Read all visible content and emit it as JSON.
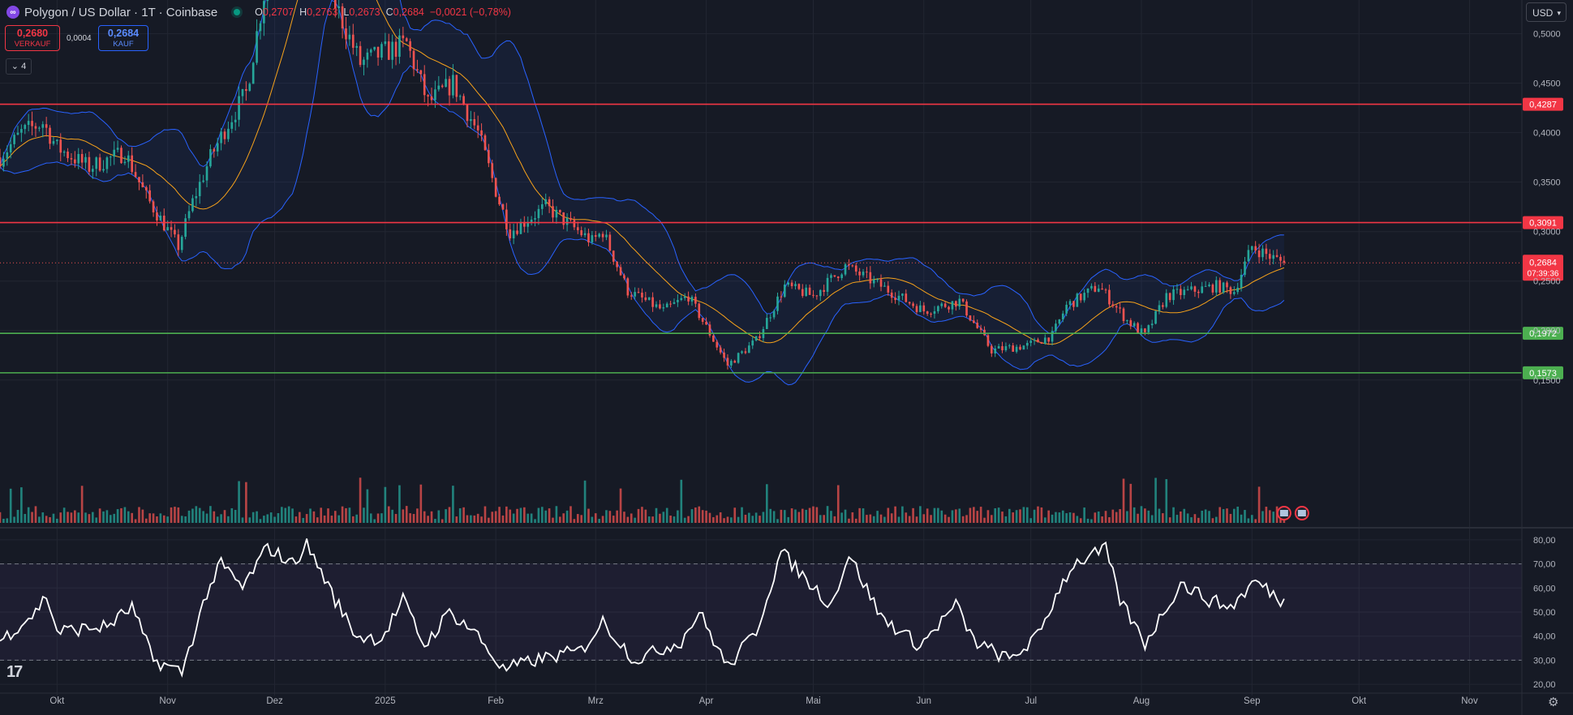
{
  "header": {
    "symbol_icon": "polygon-logo-icon",
    "title": "Polygon / US Dollar · 1T · Coinbase",
    "ohlc": {
      "o_label": "O",
      "o": "0,2707",
      "h_label": "H",
      "h": "0,2763",
      "l_label": "L",
      "l": "0,2673",
      "c_label": "C",
      "c": "0,2684",
      "change": "−0,0021 (−0,78%)"
    }
  },
  "order": {
    "sell_price": "0,2680",
    "sell_label": "VERKAUF",
    "spread": "0,0004",
    "buy_price": "0,2684",
    "buy_label": "KAUF"
  },
  "indicators_toggle": "4",
  "currency": "USD",
  "colors": {
    "background": "#161a25",
    "grid": "#222632",
    "up": "#26a69a",
    "down": "#ef5350",
    "resistance": "#f23645",
    "support": "#4caf50",
    "bollinger": "#2962ff",
    "bollinger_fill": "rgba(41,98,255,0.07)",
    "ma": "#f7a21b",
    "rsi_line": "#ffffff",
    "rsi_band": "rgba(126,87,194,0.08)",
    "axis_text": "#b2b5be"
  },
  "chart_data": [
    {
      "type": "candlestick",
      "title": "Polygon / US Dollar · 1T · Coinbase",
      "ylim": [
        0.149,
        0.5275
      ],
      "y_ticks": [
        0.15,
        0.2,
        0.25,
        0.3,
        0.35,
        0.4,
        0.45,
        0.5
      ],
      "y_tick_labels": [
        "0,1500",
        "0,2000",
        "0,2500",
        "0,3000",
        "0,3500",
        "0,4000",
        "0,4500",
        "0,5000"
      ],
      "x_ticks": [
        "Okt",
        "Nov",
        "Dez",
        "2025",
        "Feb",
        "Mrz",
        "Apr",
        "Mai",
        "Jun",
        "Jul",
        "Aug",
        "Sep",
        "Okt",
        "Nov"
      ],
      "x_range": [
        "2024-09-15",
        "2025-11-30"
      ],
      "price_anchors": [
        {
          "date": "2024-09-15",
          "close": 0.375
        },
        {
          "date": "2024-09-21",
          "close": 0.4
        },
        {
          "date": "2024-09-27",
          "close": 0.41
        },
        {
          "date": "2024-10-01",
          "close": 0.385
        },
        {
          "date": "2024-10-10",
          "close": 0.365
        },
        {
          "date": "2024-10-20",
          "close": 0.38
        },
        {
          "date": "2024-10-26",
          "close": 0.335
        },
        {
          "date": "2024-11-04",
          "close": 0.285
        },
        {
          "date": "2024-11-08",
          "close": 0.33
        },
        {
          "date": "2024-11-13",
          "close": 0.375
        },
        {
          "date": "2024-11-18",
          "close": 0.41
        },
        {
          "date": "2024-11-23",
          "close": 0.44
        },
        {
          "date": "2024-12-01",
          "close": 0.6
        },
        {
          "date": "2024-12-07",
          "close": 0.67
        },
        {
          "date": "2024-12-13",
          "close": 0.62
        },
        {
          "date": "2024-12-18",
          "close": 0.53
        },
        {
          "date": "2024-12-25",
          "close": 0.47
        },
        {
          "date": "2024-12-31",
          "close": 0.48
        },
        {
          "date": "2025-01-07",
          "close": 0.49
        },
        {
          "date": "2025-01-13",
          "close": 0.43
        },
        {
          "date": "2025-01-20",
          "close": 0.45
        },
        {
          "date": "2025-01-27",
          "close": 0.4
        },
        {
          "date": "2025-02-02",
          "close": 0.33
        },
        {
          "date": "2025-02-05",
          "close": 0.3
        },
        {
          "date": "2025-02-15",
          "close": 0.325
        },
        {
          "date": "2025-02-28",
          "close": 0.29
        },
        {
          "date": "2025-03-03",
          "close": 0.3
        },
        {
          "date": "2025-03-10",
          "close": 0.24
        },
        {
          "date": "2025-03-20",
          "close": 0.22
        },
        {
          "date": "2025-03-27",
          "close": 0.235
        },
        {
          "date": "2025-04-07",
          "close": 0.165
        },
        {
          "date": "2025-04-15",
          "close": 0.19
        },
        {
          "date": "2025-04-23",
          "close": 0.245
        },
        {
          "date": "2025-05-01",
          "close": 0.235
        },
        {
          "date": "2025-05-10",
          "close": 0.265
        },
        {
          "date": "2025-05-20",
          "close": 0.245
        },
        {
          "date": "2025-06-01",
          "close": 0.22
        },
        {
          "date": "2025-06-11",
          "close": 0.23
        },
        {
          "date": "2025-06-20",
          "close": 0.18
        },
        {
          "date": "2025-06-30",
          "close": 0.185
        },
        {
          "date": "2025-07-07",
          "close": 0.195
        },
        {
          "date": "2025-07-11",
          "close": 0.225
        },
        {
          "date": "2025-07-20",
          "close": 0.245
        },
        {
          "date": "2025-07-28",
          "close": 0.21
        },
        {
          "date": "2025-08-02",
          "close": 0.195
        },
        {
          "date": "2025-08-08",
          "close": 0.235
        },
        {
          "date": "2025-08-15",
          "close": 0.24
        },
        {
          "date": "2025-08-22",
          "close": 0.245
        },
        {
          "date": "2025-08-27",
          "close": 0.24
        },
        {
          "date": "2025-09-01",
          "close": 0.285
        },
        {
          "date": "2025-09-06",
          "close": 0.275
        },
        {
          "date": "2025-09-10",
          "close": 0.2684
        }
      ],
      "horizontal_lines": [
        {
          "value": 0.4287,
          "label": "0,4287",
          "kind": "resistance"
        },
        {
          "value": 0.3091,
          "label": "0,3091",
          "kind": "resistance"
        },
        {
          "value": 0.1972,
          "label": "0,1972",
          "kind": "support"
        },
        {
          "value": 0.1573,
          "label": "0,1573",
          "kind": "support"
        }
      ],
      "last_price": {
        "value": 0.2684,
        "label": "0,2684",
        "countdown": "07:39:36"
      },
      "overlays": [
        "Bollinger Bands (20, 2)",
        "Moving average (20)"
      ],
      "volume": true,
      "event_flags": [
        "us-flag-icon",
        "us-flag-icon"
      ]
    },
    {
      "type": "line",
      "name": "RSI",
      "ylim": [
        17,
        83
      ],
      "y_ticks": [
        20,
        30,
        40,
        50,
        60,
        70,
        80
      ],
      "y_tick_labels": [
        "20,00",
        "30,00",
        "40,00",
        "50,00",
        "60,00",
        "70,00",
        "80,00"
      ],
      "band": [
        30,
        70
      ],
      "anchors": [
        {
          "date": "2024-09-15",
          "v": 38
        },
        {
          "date": "2024-09-25",
          "v": 50
        },
        {
          "date": "2024-09-28",
          "v": 57
        },
        {
          "date": "2024-10-01",
          "v": 42
        },
        {
          "date": "2024-10-15",
          "v": 44
        },
        {
          "date": "2024-10-22",
          "v": 52
        },
        {
          "date": "2024-10-28",
          "v": 30
        },
        {
          "date": "2024-11-05",
          "v": 25
        },
        {
          "date": "2024-11-12",
          "v": 58
        },
        {
          "date": "2024-11-16",
          "v": 70
        },
        {
          "date": "2024-11-22",
          "v": 60
        },
        {
          "date": "2024-11-29",
          "v": 77
        },
        {
          "date": "2024-12-06",
          "v": 70
        },
        {
          "date": "2024-12-10",
          "v": 78
        },
        {
          "date": "2024-12-14",
          "v": 67
        },
        {
          "date": "2024-12-18",
          "v": 55
        },
        {
          "date": "2024-12-24",
          "v": 40
        },
        {
          "date": "2024-12-31",
          "v": 39
        },
        {
          "date": "2025-01-06",
          "v": 55
        },
        {
          "date": "2025-01-12",
          "v": 36
        },
        {
          "date": "2025-01-19",
          "v": 50
        },
        {
          "date": "2025-01-26",
          "v": 42
        },
        {
          "date": "2025-02-03",
          "v": 26
        },
        {
          "date": "2025-02-12",
          "v": 30
        },
        {
          "date": "2025-02-25",
          "v": 34
        },
        {
          "date": "2025-03-03",
          "v": 46
        },
        {
          "date": "2025-03-12",
          "v": 30
        },
        {
          "date": "2025-03-25",
          "v": 38
        },
        {
          "date": "2025-03-30",
          "v": 50
        },
        {
          "date": "2025-04-07",
          "v": 27
        },
        {
          "date": "2025-04-15",
          "v": 42
        },
        {
          "date": "2025-04-22",
          "v": 75
        },
        {
          "date": "2025-04-30",
          "v": 62
        },
        {
          "date": "2025-05-06",
          "v": 53
        },
        {
          "date": "2025-05-11",
          "v": 74
        },
        {
          "date": "2025-05-20",
          "v": 48
        },
        {
          "date": "2025-05-31",
          "v": 36
        },
        {
          "date": "2025-06-10",
          "v": 53
        },
        {
          "date": "2025-06-15",
          "v": 38
        },
        {
          "date": "2025-06-25",
          "v": 30
        },
        {
          "date": "2025-07-03",
          "v": 40
        },
        {
          "date": "2025-07-09",
          "v": 60
        },
        {
          "date": "2025-07-13",
          "v": 70
        },
        {
          "date": "2025-07-22",
          "v": 76
        },
        {
          "date": "2025-07-26",
          "v": 55
        },
        {
          "date": "2025-08-02",
          "v": 37
        },
        {
          "date": "2025-08-12",
          "v": 62
        },
        {
          "date": "2025-08-20",
          "v": 55
        },
        {
          "date": "2025-08-26",
          "v": 52
        },
        {
          "date": "2025-09-02",
          "v": 63
        },
        {
          "date": "2025-09-10",
          "v": 54
        }
      ]
    }
  ]
}
